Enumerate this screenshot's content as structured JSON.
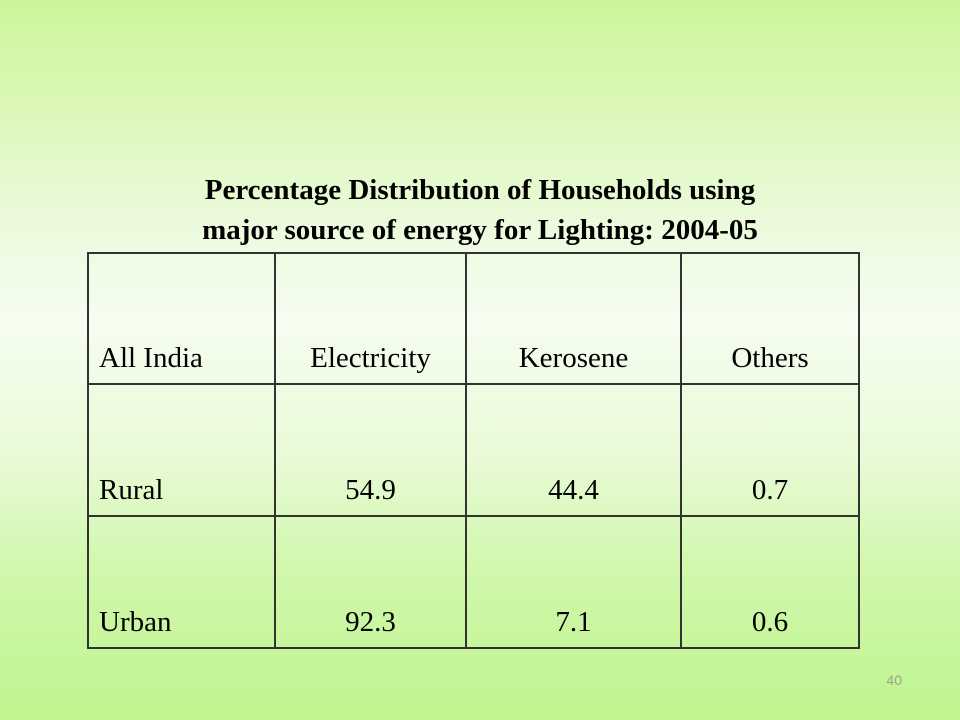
{
  "slide": {
    "title_line1": "Percentage Distribution of Households using",
    "title_line2": "major source of energy for Lighting: 2004-05",
    "page_number": "40"
  },
  "table": {
    "headers": [
      "All India",
      "Electricity",
      "Kerosene",
      "Others"
    ],
    "rows": [
      [
        "Rural",
        "54.9",
        "44.4",
        "0.7"
      ],
      [
        "Urban",
        "92.3",
        "7.1",
        "0.6"
      ]
    ]
  }
}
